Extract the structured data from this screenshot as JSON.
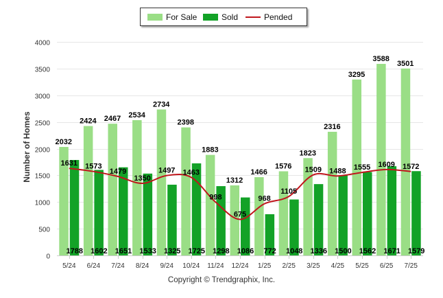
{
  "chart_data": {
    "type": "bar",
    "categories": [
      "5/24",
      "6/24",
      "7/24",
      "8/24",
      "9/24",
      "10/24",
      "11/24",
      "12/24",
      "1/25",
      "2/25",
      "3/25",
      "4/25",
      "5/25",
      "6/25",
      "7/25"
    ],
    "series": [
      {
        "name": "For Sale",
        "type": "bar",
        "color": "#9ade86",
        "values": [
          2032,
          2424,
          2467,
          2534,
          2734,
          2398,
          1883,
          1312,
          1466,
          1576,
          1823,
          2316,
          3295,
          3588,
          3501
        ]
      },
      {
        "name": "Sold",
        "type": "bar",
        "color": "#13a227",
        "values": [
          1788,
          1602,
          1651,
          1533,
          1325,
          1725,
          1298,
          1086,
          772,
          1048,
          1336,
          1500,
          1562,
          1671,
          1579
        ]
      },
      {
        "name": "Pended",
        "type": "line",
        "color": "#c0161c",
        "values": [
          1631,
          1573,
          1479,
          1350,
          1497,
          1463,
          998,
          675,
          968,
          1105,
          1509,
          1488,
          1555,
          1609,
          1572
        ]
      }
    ],
    "ylabel": "Number of Homes",
    "ylim": [
      0,
      4000
    ],
    "yticks": [
      "0",
      "500",
      "1000",
      "1500",
      "2000",
      "2500",
      "3000",
      "3500",
      "4000"
    ],
    "grid": true,
    "legend_position": "top-center"
  },
  "credit": "Copyright © Trendgraphix, Inc."
}
